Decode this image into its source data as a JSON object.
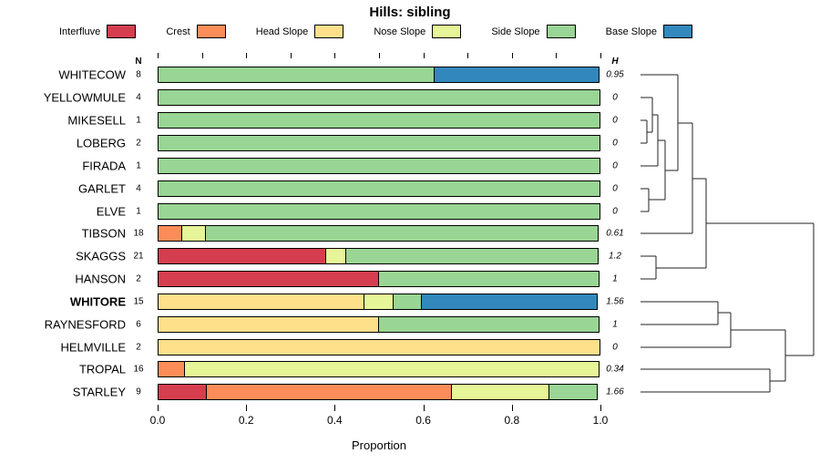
{
  "columns": {
    "n_header": "N",
    "h_header": "H"
  },
  "x_axis": {
    "label": "Proportion",
    "major_ticks": [
      0,
      0.2,
      0.4,
      0.6,
      0.8,
      1.0
    ],
    "major_tick_labels": [
      "0.0",
      "0.2",
      "0.4",
      "0.6",
      "0.8",
      "1.0"
    ],
    "minor_tick_step": 0.1
  },
  "chart_data": {
    "type": "bar",
    "variant": "horizontal-stacked-proportion-with-dendrogram",
    "title": "Hills: sibling",
    "xlabel": "Proportion",
    "xlim": [
      0,
      1
    ],
    "categories": [
      "Interfluve",
      "Crest",
      "Head Slope",
      "Nose Slope",
      "Side Slope",
      "Base Slope"
    ],
    "colors": [
      "#D53E4F",
      "#FC8D59",
      "#FEE08B",
      "#E6F598",
      "#99D594",
      "#3288BD"
    ],
    "rows": [
      {
        "label": "WHITECOW",
        "n": "8",
        "h": "0.95",
        "bold": false,
        "segments": [
          0,
          0,
          0,
          0,
          0.625,
          0.375
        ]
      },
      {
        "label": "YELLOWMULE",
        "n": "4",
        "h": "0",
        "bold": false,
        "segments": [
          0,
          0,
          0,
          0,
          1,
          0
        ]
      },
      {
        "label": "MIKESELL",
        "n": "1",
        "h": "0",
        "bold": false,
        "segments": [
          0,
          0,
          0,
          0,
          1,
          0
        ]
      },
      {
        "label": "LOBERG",
        "n": "2",
        "h": "0",
        "bold": false,
        "segments": [
          0,
          0,
          0,
          0,
          1,
          0
        ]
      },
      {
        "label": "FIRADA",
        "n": "1",
        "h": "0",
        "bold": false,
        "segments": [
          0,
          0,
          0,
          0,
          1,
          0
        ]
      },
      {
        "label": "GARLET",
        "n": "4",
        "h": "0",
        "bold": false,
        "segments": [
          0,
          0,
          0,
          0,
          1,
          0
        ]
      },
      {
        "label": "ELVE",
        "n": "1",
        "h": "0",
        "bold": false,
        "segments": [
          0,
          0,
          0,
          0,
          1,
          0
        ]
      },
      {
        "label": "TIBSON",
        "n": "18",
        "h": "0.61",
        "bold": false,
        "segments": [
          0,
          0.056,
          0,
          0.056,
          0.888,
          0
        ]
      },
      {
        "label": "SKAGGS",
        "n": "21",
        "h": "1.2",
        "bold": false,
        "segments": [
          0.381,
          0,
          0,
          0.048,
          0.571,
          0
        ]
      },
      {
        "label": "HANSON",
        "n": "2",
        "h": "1",
        "bold": false,
        "segments": [
          0.5,
          0,
          0,
          0,
          0.5,
          0
        ]
      },
      {
        "label": "WHITORE",
        "n": "15",
        "h": "1.56",
        "bold": true,
        "segments": [
          0,
          0,
          0.467,
          0.067,
          0.066,
          0.4
        ]
      },
      {
        "label": "RAYNESFORD",
        "n": "6",
        "h": "1",
        "bold": false,
        "segments": [
          0,
          0,
          0.5,
          0,
          0.5,
          0
        ]
      },
      {
        "label": "HELMVILLE",
        "n": "2",
        "h": "0",
        "bold": false,
        "segments": [
          0,
          0,
          1,
          0,
          0,
          0
        ]
      },
      {
        "label": "TROPAL",
        "n": "16",
        "h": "0.34",
        "bold": false,
        "segments": [
          0,
          0.0625,
          0,
          0.9375,
          0,
          0
        ]
      },
      {
        "label": "STARLEY",
        "n": "9",
        "h": "1.66",
        "bold": false,
        "segments": [
          0.111,
          0.556,
          0,
          0.222,
          0.111,
          0
        ]
      }
    ],
    "dendrogram": {
      "segments": [
        [
          3,
          72,
          10,
          72
        ],
        [
          3,
          97,
          10,
          97
        ],
        [
          10,
          72,
          10,
          97
        ],
        [
          3,
          47,
          16,
          47
        ],
        [
          10,
          85,
          16,
          85
        ],
        [
          16,
          47,
          16,
          85
        ],
        [
          16,
          66,
          22,
          66
        ],
        [
          3,
          122,
          22,
          122
        ],
        [
          22,
          66,
          22,
          122
        ],
        [
          3,
          147,
          12,
          147
        ],
        [
          3,
          172,
          12,
          172
        ],
        [
          12,
          147,
          12,
          172
        ],
        [
          22,
          94,
          30,
          94
        ],
        [
          12,
          159,
          30,
          159
        ],
        [
          30,
          94,
          30,
          159
        ],
        [
          3,
          22,
          44,
          22
        ],
        [
          30,
          127,
          44,
          127
        ],
        [
          44,
          22,
          44,
          127
        ],
        [
          44,
          75,
          60,
          75
        ],
        [
          3,
          196,
          60,
          196
        ],
        [
          60,
          75,
          60,
          196
        ],
        [
          3,
          221,
          20,
          221
        ],
        [
          3,
          246,
          20,
          246
        ],
        [
          20,
          221,
          20,
          246
        ],
        [
          60,
          136,
          75,
          136
        ],
        [
          20,
          234,
          75,
          234
        ],
        [
          75,
          136,
          75,
          234
        ],
        [
          3,
          271,
          88,
          271
        ],
        [
          3,
          296,
          88,
          296
        ],
        [
          88,
          271,
          88,
          296
        ],
        [
          88,
          283,
          102,
          283
        ],
        [
          3,
          321,
          102,
          321
        ],
        [
          102,
          283,
          102,
          321
        ],
        [
          3,
          345,
          145,
          345
        ],
        [
          3,
          370,
          145,
          370
        ],
        [
          145,
          345,
          145,
          370
        ],
        [
          102,
          302,
          162,
          302
        ],
        [
          145,
          358,
          162,
          358
        ],
        [
          162,
          302,
          162,
          358
        ],
        [
          75,
          185,
          193,
          185
        ],
        [
          162,
          330,
          193,
          330
        ],
        [
          193,
          185,
          193,
          330
        ]
      ]
    }
  }
}
